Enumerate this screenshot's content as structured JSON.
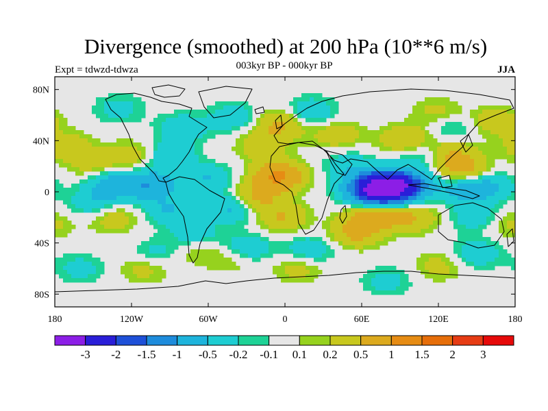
{
  "chart_data": {
    "type": "heatmap",
    "title": "Divergence (smoothed) at 200 hPa (10**6 m/s)",
    "subtitle": "003kyr BP - 000kyr BP",
    "left_label": "Expt = tdwzd-tdwza",
    "right_label": "JJA",
    "xlabel": "",
    "ylabel": "",
    "x_ticks": [
      "180",
      "120W",
      "60W",
      "0",
      "60E",
      "120E",
      "180"
    ],
    "x_tick_values": [
      -180,
      -120,
      -60,
      0,
      60,
      120,
      180
    ],
    "y_ticks": [
      "80N",
      "40N",
      "0",
      "40S",
      "80S"
    ],
    "y_tick_values": [
      80,
      40,
      0,
      -40,
      -80
    ],
    "xlim": [
      -180,
      180
    ],
    "ylim": [
      -90,
      90
    ],
    "colorbar": {
      "colors": [
        "#8c1ee6",
        "#2a1ed8",
        "#1e50d8",
        "#1e8cdc",
        "#1eb4dc",
        "#1ecdd2",
        "#1ed296",
        "#e6e6e6",
        "#96d21e",
        "#c8c81e",
        "#dcaa1e",
        "#e68c14",
        "#e66e0a",
        "#e63c14",
        "#e60a0a"
      ],
      "labels": [
        "-3",
        "-2",
        "-1.5",
        "-1",
        "-0.5",
        "-0.2",
        "-0.1",
        "0.1",
        "0.2",
        "0.5",
        "1",
        "1.5",
        "2",
        "3"
      ]
    },
    "features": [
      {
        "lon": 77,
        "lat": 3,
        "value": -3.5
      },
      {
        "lon": 95,
        "lat": 5,
        "value": -1.5
      },
      {
        "lon": 65,
        "lat": 0,
        "value": -1.0
      },
      {
        "lon": 140,
        "lat": 3,
        "value": -0.8
      },
      {
        "lon": 160,
        "lat": 5,
        "value": -0.5
      },
      {
        "lon": -105,
        "lat": 5,
        "value": -0.9
      },
      {
        "lon": -135,
        "lat": 5,
        "value": -0.8
      },
      {
        "lon": -150,
        "lat": -10,
        "value": -0.4
      },
      {
        "lon": -90,
        "lat": -15,
        "value": -0.5
      },
      {
        "lon": -40,
        "lat": -12,
        "value": -0.7
      },
      {
        "lon": -30,
        "lat": -45,
        "value": -0.5
      },
      {
        "lon": -60,
        "lat": 10,
        "value": -0.5
      },
      {
        "lon": -70,
        "lat": -35,
        "value": -0.4
      },
      {
        "lon": -90,
        "lat": 28,
        "value": -0.5
      },
      {
        "lon": -80,
        "lat": 50,
        "value": -0.4
      },
      {
        "lon": -40,
        "lat": 58,
        "value": -0.4
      },
      {
        "lon": 20,
        "lat": 62,
        "value": -0.5
      },
      {
        "lon": 50,
        "lat": 20,
        "value": -0.4
      },
      {
        "lon": 105,
        "lat": 30,
        "value": -0.4
      },
      {
        "lon": 130,
        "lat": 50,
        "value": -0.3
      },
      {
        "lon": 20,
        "lat": -45,
        "value": -0.4
      },
      {
        "lon": 150,
        "lat": -48,
        "value": -0.4
      },
      {
        "lon": 150,
        "lat": -20,
        "value": -0.4
      },
      {
        "lon": -100,
        "lat": -48,
        "value": -0.3
      },
      {
        "lon": -130,
        "lat": 65,
        "value": -0.3
      },
      {
        "lon": -160,
        "lat": -60,
        "value": -0.3
      },
      {
        "lon": 80,
        "lat": -70,
        "value": -0.3
      },
      {
        "lon": -5,
        "lat": 12,
        "value": 1.1
      },
      {
        "lon": -25,
        "lat": -5,
        "value": 0.7
      },
      {
        "lon": -2,
        "lat": -20,
        "value": 0.5
      },
      {
        "lon": 70,
        "lat": -18,
        "value": 0.9
      },
      {
        "lon": 100,
        "lat": -20,
        "value": 0.5
      },
      {
        "lon": 55,
        "lat": -32,
        "value": 0.6
      },
      {
        "lon": 140,
        "lat": 15,
        "value": 0.8
      },
      {
        "lon": 95,
        "lat": 40,
        "value": 0.6
      },
      {
        "lon": 130,
        "lat": 30,
        "value": 0.5
      },
      {
        "lon": -170,
        "lat": 35,
        "value": 0.4
      },
      {
        "lon": -120,
        "lat": 28,
        "value": 0.4
      },
      {
        "lon": -150,
        "lat": 20,
        "value": 0.3
      },
      {
        "lon": -135,
        "lat": -20,
        "value": 0.4
      },
      {
        "lon": -70,
        "lat": -45,
        "value": 0.3
      },
      {
        "lon": -40,
        "lat": -52,
        "value": 0.3
      },
      {
        "lon": 0,
        "lat": 55,
        "value": 0.4
      },
      {
        "lon": 40,
        "lat": 45,
        "value": 0.4
      },
      {
        "lon": -20,
        "lat": 35,
        "value": 0.3
      },
      {
        "lon": -10,
        "lat": 48,
        "value": 0.3
      },
      {
        "lon": 120,
        "lat": 62,
        "value": 0.3
      },
      {
        "lon": 165,
        "lat": 55,
        "value": 0.4
      },
      {
        "lon": 175,
        "lat": -25,
        "value": 0.3
      },
      {
        "lon": 10,
        "lat": -60,
        "value": 0.3
      },
      {
        "lon": 120,
        "lat": -58,
        "value": 0.3
      },
      {
        "lon": -110,
        "lat": -60,
        "value": 0.3
      }
    ]
  }
}
